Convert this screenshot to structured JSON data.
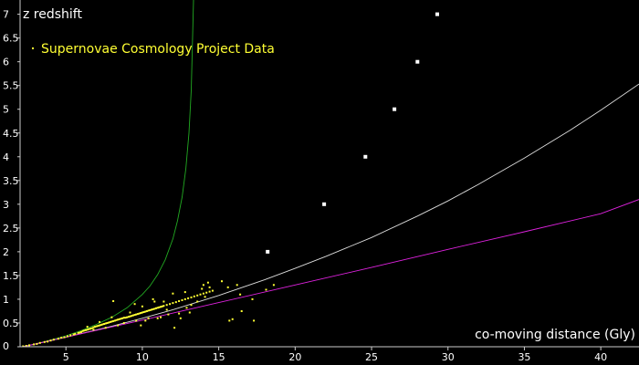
{
  "chart_data": {
    "type": "scatter",
    "title": "",
    "xlabel": "co-moving distance (Gly)",
    "ylabel": "z redshift",
    "xlim": [
      2,
      42.5
    ],
    "ylim": [
      0,
      7.3
    ],
    "x_ticks": [
      5,
      10,
      15,
      20,
      25,
      30,
      35,
      40
    ],
    "x_tick_labels": [
      "5",
      "10",
      "15",
      "20",
      "25",
      "30",
      "35",
      "40"
    ],
    "y_ticks": [
      0,
      0.5,
      1,
      1.5,
      2,
      2.5,
      3,
      3.5,
      4,
      4.5,
      5,
      5.5,
      6,
      6.5,
      7
    ],
    "y_tick_labels": [
      "0",
      "0.5",
      "1",
      "1.5",
      "2",
      "2.5",
      "3",
      "3.5",
      "4",
      "4.5",
      "5",
      "5.5",
      "6",
      "6.5",
      "7"
    ],
    "grid": false,
    "legend": {
      "position": "top-left",
      "entries": [
        "Supernovae Cosmology Project Data"
      ]
    },
    "colors": {
      "background": "#000000",
      "axes": "#cccccc",
      "text": "#ffffff",
      "supernovae": "#ffff33",
      "markers": "#ffffff",
      "curve_green": "#22aa22",
      "curve_white": "#dddddd",
      "curve_magenta": "#dd22dd"
    },
    "series": [
      {
        "marker": "square",
        "color": "#ffffff",
        "x": [
          18.2,
          21.9,
          24.6,
          26.5,
          28.0,
          29.3
        ],
        "y": [
          2.0,
          3.0,
          4.0,
          5.0,
          6.0,
          7.0
        ]
      },
      {
        "marker": "line",
        "color": "#22aa22",
        "x": [
          2.2,
          3,
          4,
          5,
          6,
          7,
          8,
          9,
          10,
          10.5,
          11,
          11.5,
          12,
          12.3,
          12.6,
          12.85,
          13.05,
          13.2,
          13.35
        ],
        "y": [
          0.0,
          0.06,
          0.14,
          0.23,
          0.34,
          0.47,
          0.62,
          0.82,
          1.1,
          1.28,
          1.52,
          1.83,
          2.27,
          2.65,
          3.15,
          3.75,
          4.5,
          5.4,
          7.3
        ]
      },
      {
        "marker": "line",
        "color": "#dddddd",
        "x": [
          2.2,
          5,
          8,
          10,
          12,
          15,
          18,
          20,
          22,
          25,
          28,
          30,
          32,
          35,
          38,
          40,
          42.5
        ],
        "y": [
          0.0,
          0.2,
          0.43,
          0.6,
          0.78,
          1.08,
          1.41,
          1.65,
          1.9,
          2.3,
          2.75,
          3.07,
          3.42,
          3.97,
          4.56,
          4.98,
          5.53
        ]
      },
      {
        "marker": "line",
        "color": "#dd22dd",
        "x": [
          2.2,
          10,
          15,
          20,
          25,
          30,
          35,
          40,
          42.5
        ],
        "y": [
          0.0,
          0.56,
          0.93,
          1.3,
          1.67,
          2.05,
          2.42,
          2.8,
          3.1
        ]
      },
      {
        "name": "Supernovae Cosmology Project Data",
        "marker": "dot",
        "color": "#ffff33",
        "x": [
          2.2,
          2.4,
          2.6,
          2.9,
          3.1,
          3.3,
          3.6,
          3.8,
          4.0,
          4.2,
          4.5,
          4.7,
          4.9,
          5.1,
          5.3,
          5.5,
          5.6,
          5.8,
          5.9,
          6.0,
          6.1,
          6.2,
          6.3,
          6.4,
          6.5,
          6.6,
          6.7,
          6.8,
          6.9,
          7.0,
          7.1,
          7.2,
          7.3,
          7.4,
          7.5,
          7.6,
          7.7,
          7.8,
          7.9,
          8.0,
          8.1,
          8.2,
          8.3,
          8.4,
          8.5,
          8.6,
          8.7,
          8.8,
          8.9,
          9.0,
          9.1,
          9.2,
          9.3,
          9.4,
          9.5,
          9.6,
          9.7,
          9.8,
          9.9,
          10.0,
          10.1,
          10.2,
          10.3,
          10.4,
          10.5,
          10.6,
          10.7,
          10.8,
          10.9,
          11.0,
          11.1,
          11.2,
          11.3,
          11.4,
          11.6,
          11.8,
          12.0,
          12.2,
          12.4,
          12.6,
          12.8,
          13.0,
          13.2,
          13.4,
          13.6,
          13.8,
          14.0,
          14.2,
          14.4,
          14.6,
          6.4,
          6.8,
          7.2,
          7.6,
          8.0,
          8.4,
          8.8,
          9.2,
          9.6,
          10.0,
          10.4,
          10.8,
          11.2,
          11.6,
          12.0,
          12.4,
          12.8,
          13.2,
          13.6,
          14.0,
          14.4,
          8.1,
          9.5,
          10.2,
          11.0,
          11.7,
          12.5,
          13.1,
          13.9,
          14.3,
          15.2,
          15.6,
          15.9,
          16.2,
          16.5,
          17.2,
          18.1,
          18.6,
          15.7,
          17.3,
          12.1,
          16.4,
          14.1,
          12.9,
          11.4,
          10.7,
          9.9
        ],
        "y": [
          0.01,
          0.02,
          0.03,
          0.05,
          0.06,
          0.08,
          0.1,
          0.11,
          0.13,
          0.15,
          0.17,
          0.19,
          0.2,
          0.22,
          0.24,
          0.26,
          0.27,
          0.29,
          0.3,
          0.31,
          0.33,
          0.34,
          0.35,
          0.36,
          0.37,
          0.38,
          0.39,
          0.41,
          0.42,
          0.43,
          0.44,
          0.45,
          0.46,
          0.47,
          0.48,
          0.49,
          0.5,
          0.51,
          0.52,
          0.53,
          0.54,
          0.55,
          0.56,
          0.57,
          0.58,
          0.59,
          0.6,
          0.61,
          0.61,
          0.62,
          0.63,
          0.64,
          0.65,
          0.66,
          0.67,
          0.68,
          0.69,
          0.7,
          0.71,
          0.72,
          0.73,
          0.74,
          0.75,
          0.76,
          0.77,
          0.78,
          0.79,
          0.8,
          0.81,
          0.82,
          0.83,
          0.84,
          0.85,
          0.86,
          0.88,
          0.9,
          0.92,
          0.94,
          0.96,
          0.98,
          1.0,
          1.02,
          1.04,
          1.06,
          1.08,
          1.1,
          1.12,
          1.14,
          1.16,
          1.18,
          0.42,
          0.36,
          0.52,
          0.4,
          0.62,
          0.45,
          0.5,
          0.72,
          0.55,
          0.85,
          0.6,
          0.95,
          0.62,
          0.78,
          1.12,
          0.7,
          1.15,
          0.88,
          0.95,
          1.3,
          1.25,
          0.96,
          0.9,
          0.55,
          0.6,
          0.68,
          0.6,
          0.72,
          1.22,
          1.35,
          1.38,
          1.25,
          0.58,
          1.3,
          0.75,
          1.0,
          1.2,
          1.3,
          0.55,
          0.55,
          0.4,
          1.1,
          1.05,
          0.82,
          0.95,
          1.0,
          0.45
        ]
      }
    ]
  }
}
